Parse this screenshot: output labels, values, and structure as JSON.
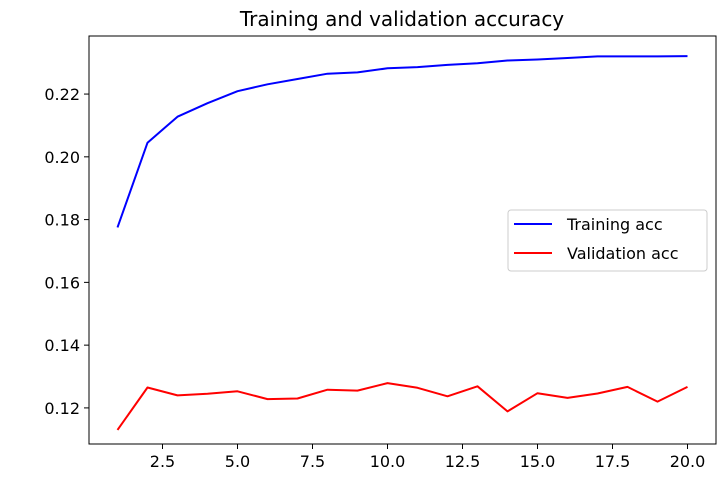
{
  "chart_data": {
    "type": "line",
    "title": "Training and validation accuracy",
    "xlabel": "",
    "ylabel": "",
    "xlim": [
      0.05,
      20.95
    ],
    "ylim": [
      0.1085,
      0.2385
    ],
    "xticks": [
      2.5,
      5.0,
      7.5,
      10.0,
      12.5,
      15.0,
      17.5,
      20.0
    ],
    "xtick_labels": [
      "2.5",
      "5.0",
      "7.5",
      "10.0",
      "12.5",
      "15.0",
      "17.5",
      "20.0"
    ],
    "yticks": [
      0.12,
      0.14,
      0.16,
      0.18,
      0.2,
      0.22
    ],
    "ytick_labels": [
      "0.12",
      "0.14",
      "0.16",
      "0.18",
      "0.20",
      "0.22"
    ],
    "grid": false,
    "legend_position": "center-right",
    "x": [
      1,
      2,
      3,
      4,
      5,
      6,
      7,
      8,
      9,
      10,
      11,
      12,
      13,
      14,
      15,
      16,
      17,
      18,
      19,
      20
    ],
    "series": [
      {
        "name": "Training acc",
        "color": "#0000ff",
        "values": [
          0.1775,
          0.2045,
          0.2128,
          0.2171,
          0.2209,
          0.2231,
          0.2248,
          0.2265,
          0.2269,
          0.2282,
          0.2286,
          0.2293,
          0.2298,
          0.2307,
          0.231,
          0.2315,
          0.232,
          0.232,
          0.232,
          0.2321
        ]
      },
      {
        "name": "Validation acc",
        "color": "#ff0000",
        "values": [
          0.113,
          0.1265,
          0.124,
          0.1245,
          0.1253,
          0.1228,
          0.123,
          0.1258,
          0.1255,
          0.1279,
          0.1264,
          0.1237,
          0.1269,
          0.1189,
          0.1247,
          0.1232,
          0.1246,
          0.1267,
          0.122,
          0.1267
        ]
      }
    ]
  }
}
